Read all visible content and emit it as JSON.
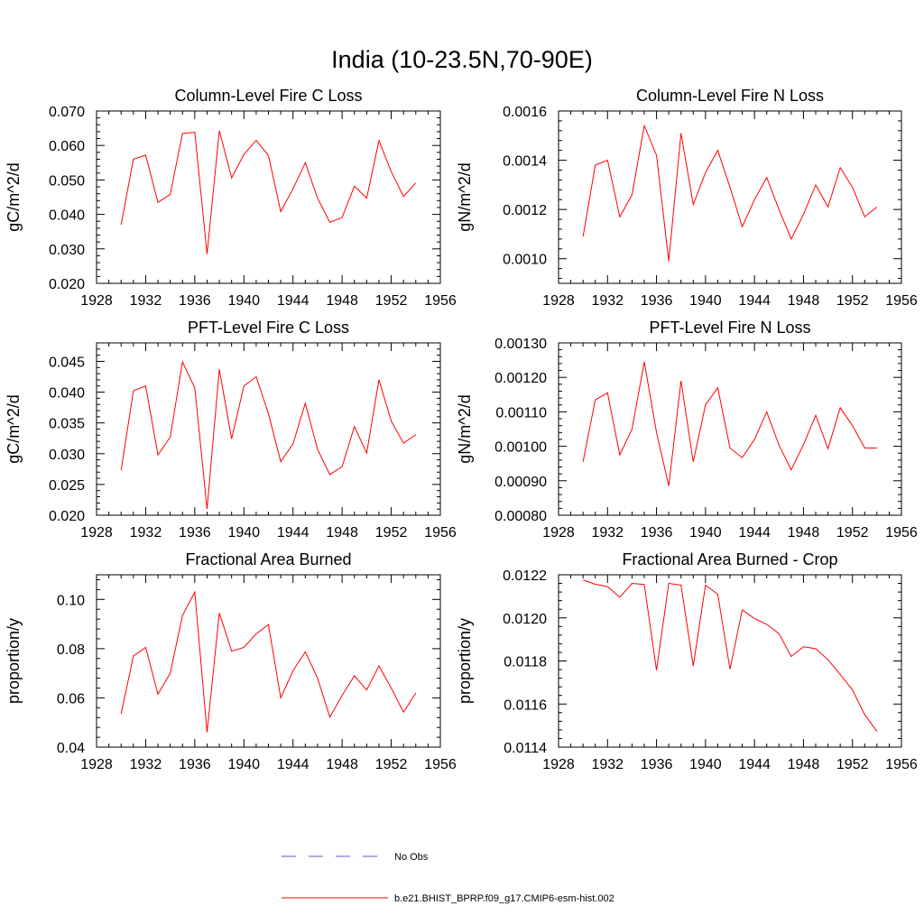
{
  "title": "India (10-23.5N,70-90E)",
  "colors": {
    "model": "#ff0000",
    "obs": "#5a5ac8",
    "axis": "#000000"
  },
  "legend": {
    "obs_label": "No Obs",
    "model_label": "b.e21.BHIST_BPRP.f09_g17.CMIP6-esm-hist.002"
  },
  "chart_data": [
    {
      "type": "line",
      "title": "Column-Level Fire C Loss",
      "ylabel": "gC/m^2/d",
      "xlim": [
        1928,
        1956
      ],
      "ylim": [
        0.02,
        0.07
      ],
      "xticks": [
        "1928",
        "1932",
        "1936",
        "1940",
        "1944",
        "1948",
        "1952",
        "1956"
      ],
      "yticks": [
        "0.020",
        "0.030",
        "0.040",
        "0.050",
        "0.060",
        "0.070"
      ],
      "x": [
        1930,
        1931,
        1932,
        1933,
        1934,
        1935,
        1936,
        1937,
        1938,
        1939,
        1940,
        1941,
        1942,
        1943,
        1944,
        1945,
        1946,
        1947,
        1948,
        1949,
        1950,
        1951,
        1952,
        1953,
        1954
      ],
      "series": [
        {
          "values": [
            0.037,
            0.056,
            0.0572,
            0.0435,
            0.0458,
            0.0635,
            0.0638,
            0.0285,
            0.0643,
            0.0506,
            0.0574,
            0.0615,
            0.0571,
            0.0408,
            0.0474,
            0.055,
            0.0447,
            0.0377,
            0.0391,
            0.0482,
            0.0447,
            0.0614,
            0.0524,
            0.0452,
            0.0491
          ]
        }
      ]
    },
    {
      "type": "line",
      "title": "Column-Level Fire N Loss",
      "ylabel": "gN/m^2/d",
      "xlim": [
        1928,
        1956
      ],
      "ylim": [
        0.0009,
        0.0016
      ],
      "xticks": [
        "1928",
        "1932",
        "1936",
        "1940",
        "1944",
        "1948",
        "1952",
        "1956"
      ],
      "yticks": [
        "0.0010",
        "0.0012",
        "0.0014",
        "0.0016"
      ],
      "x": [
        1930,
        1931,
        1932,
        1933,
        1934,
        1935,
        1936,
        1937,
        1938,
        1939,
        1940,
        1941,
        1942,
        1943,
        1944,
        1945,
        1946,
        1947,
        1948,
        1949,
        1950,
        1951,
        1952,
        1953,
        1954
      ],
      "series": [
        {
          "values": [
            0.00109,
            0.00138,
            0.0014,
            0.00117,
            0.00126,
            0.00154,
            0.00142,
            0.00099,
            0.00151,
            0.00122,
            0.00135,
            0.00144,
            0.00129,
            0.00113,
            0.00124,
            0.00133,
            0.0012,
            0.00108,
            0.00118,
            0.0013,
            0.00121,
            0.00137,
            0.00129,
            0.00117,
            0.00121
          ]
        }
      ]
    },
    {
      "type": "line",
      "title": "PFT-Level Fire C Loss",
      "ylabel": "gC/m^2/d",
      "xlim": [
        1928,
        1956
      ],
      "ylim": [
        0.02,
        0.048
      ],
      "xticks": [
        "1928",
        "1932",
        "1936",
        "1940",
        "1944",
        "1948",
        "1952",
        "1956"
      ],
      "yticks": [
        "0.020",
        "0.025",
        "0.030",
        "0.035",
        "0.040",
        "0.045"
      ],
      "x": [
        1930,
        1931,
        1932,
        1933,
        1934,
        1935,
        1936,
        1937,
        1938,
        1939,
        1940,
        1941,
        1942,
        1943,
        1944,
        1945,
        1946,
        1947,
        1948,
        1949,
        1950,
        1951,
        1952,
        1953,
        1954
      ],
      "series": [
        {
          "values": [
            0.0273,
            0.0402,
            0.041,
            0.0298,
            0.0327,
            0.0449,
            0.0407,
            0.021,
            0.0437,
            0.0324,
            0.041,
            0.0425,
            0.0365,
            0.0287,
            0.0316,
            0.0382,
            0.0307,
            0.0266,
            0.0279,
            0.0344,
            0.0301,
            0.042,
            0.0353,
            0.0317,
            0.0331
          ]
        }
      ]
    },
    {
      "type": "line",
      "title": "PFT-Level Fire N Loss",
      "ylabel": "gN/m^2/d",
      "xlim": [
        1928,
        1956
      ],
      "ylim": [
        0.0008,
        0.0013
      ],
      "xticks": [
        "1928",
        "1932",
        "1936",
        "1940",
        "1944",
        "1948",
        "1952",
        "1956"
      ],
      "yticks": [
        "0.00080",
        "0.00090",
        "0.00100",
        "0.00110",
        "0.00120",
        "0.00130"
      ],
      "x": [
        1930,
        1931,
        1932,
        1933,
        1934,
        1935,
        1936,
        1937,
        1938,
        1939,
        1940,
        1941,
        1942,
        1943,
        1944,
        1945,
        1946,
        1947,
        1948,
        1949,
        1950,
        1951,
        1952,
        1953,
        1954
      ],
      "series": [
        {
          "values": [
            0.000955,
            0.001135,
            0.001155,
            0.000975,
            0.00105,
            0.001245,
            0.00104,
            0.000885,
            0.00119,
            0.000955,
            0.00112,
            0.00117,
            0.000995,
            0.000967,
            0.00102,
            0.0011,
            0.001003,
            0.000932,
            0.001005,
            0.00109,
            0.000993,
            0.001112,
            0.00106,
            0.000995,
            0.000995
          ]
        }
      ]
    },
    {
      "type": "line",
      "title": "Fractional Area Burned",
      "ylabel": "proportion/y",
      "xlim": [
        1928,
        1956
      ],
      "ylim": [
        0.04,
        0.11
      ],
      "xticks": [
        "1928",
        "1932",
        "1936",
        "1940",
        "1944",
        "1948",
        "1952",
        "1956"
      ],
      "yticks": [
        "0.04",
        "0.06",
        "0.08",
        "0.10"
      ],
      "x": [
        1930,
        1931,
        1932,
        1933,
        1934,
        1935,
        1936,
        1937,
        1938,
        1939,
        1940,
        1941,
        1942,
        1943,
        1944,
        1945,
        1946,
        1947,
        1948,
        1949,
        1950,
        1951,
        1952,
        1953,
        1954
      ],
      "series": [
        {
          "values": [
            0.0535,
            0.077,
            0.0805,
            0.0615,
            0.07,
            0.0935,
            0.103,
            0.046,
            0.0945,
            0.079,
            0.0805,
            0.086,
            0.0898,
            0.06,
            0.071,
            0.0787,
            0.068,
            0.0522,
            0.061,
            0.069,
            0.0632,
            0.073,
            0.064,
            0.0542,
            0.062
          ]
        }
      ]
    },
    {
      "type": "line",
      "title": "Fractional Area Burned - Crop",
      "ylabel": "proportion/y",
      "xlim": [
        1928,
        1956
      ],
      "ylim": [
        0.0114,
        0.0122
      ],
      "xticks": [
        "1928",
        "1932",
        "1936",
        "1940",
        "1944",
        "1948",
        "1952",
        "1956"
      ],
      "yticks": [
        "0.0114",
        "0.0116",
        "0.0118",
        "0.0120",
        "0.0122"
      ],
      "x": [
        1930,
        1931,
        1932,
        1933,
        1934,
        1935,
        1936,
        1937,
        1938,
        1939,
        1940,
        1941,
        1942,
        1943,
        1944,
        1945,
        1946,
        1947,
        1948,
        1949,
        1950,
        1951,
        1952,
        1953,
        1954
      ],
      "series": [
        {
          "values": [
            0.012176,
            0.012156,
            0.012145,
            0.012096,
            0.01216,
            0.012155,
            0.011757,
            0.01216,
            0.012152,
            0.011777,
            0.012152,
            0.01211,
            0.011762,
            0.012037,
            0.011997,
            0.01197,
            0.011927,
            0.011821,
            0.011866,
            0.011857,
            0.011806,
            0.011737,
            0.011666,
            0.011551,
            0.011473
          ]
        }
      ]
    }
  ]
}
